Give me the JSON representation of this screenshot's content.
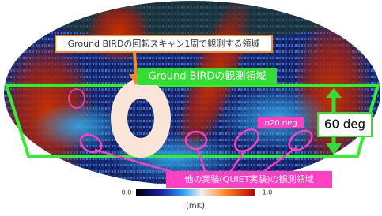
{
  "annotations": {
    "scan_ring_label": "Ground BIRDの回転スキャン1周で観測する領域",
    "observation_region_label": "Ground BIRDの観測領域",
    "elevation_label": "60 deg",
    "beam_label": "φ20 deg",
    "other_experiment_label": "他の実験(QUIET実験)の観測領域"
  },
  "colorbar": {
    "min_label": "0.0",
    "max_label": "1.0",
    "unit": "(mK)"
  }
}
